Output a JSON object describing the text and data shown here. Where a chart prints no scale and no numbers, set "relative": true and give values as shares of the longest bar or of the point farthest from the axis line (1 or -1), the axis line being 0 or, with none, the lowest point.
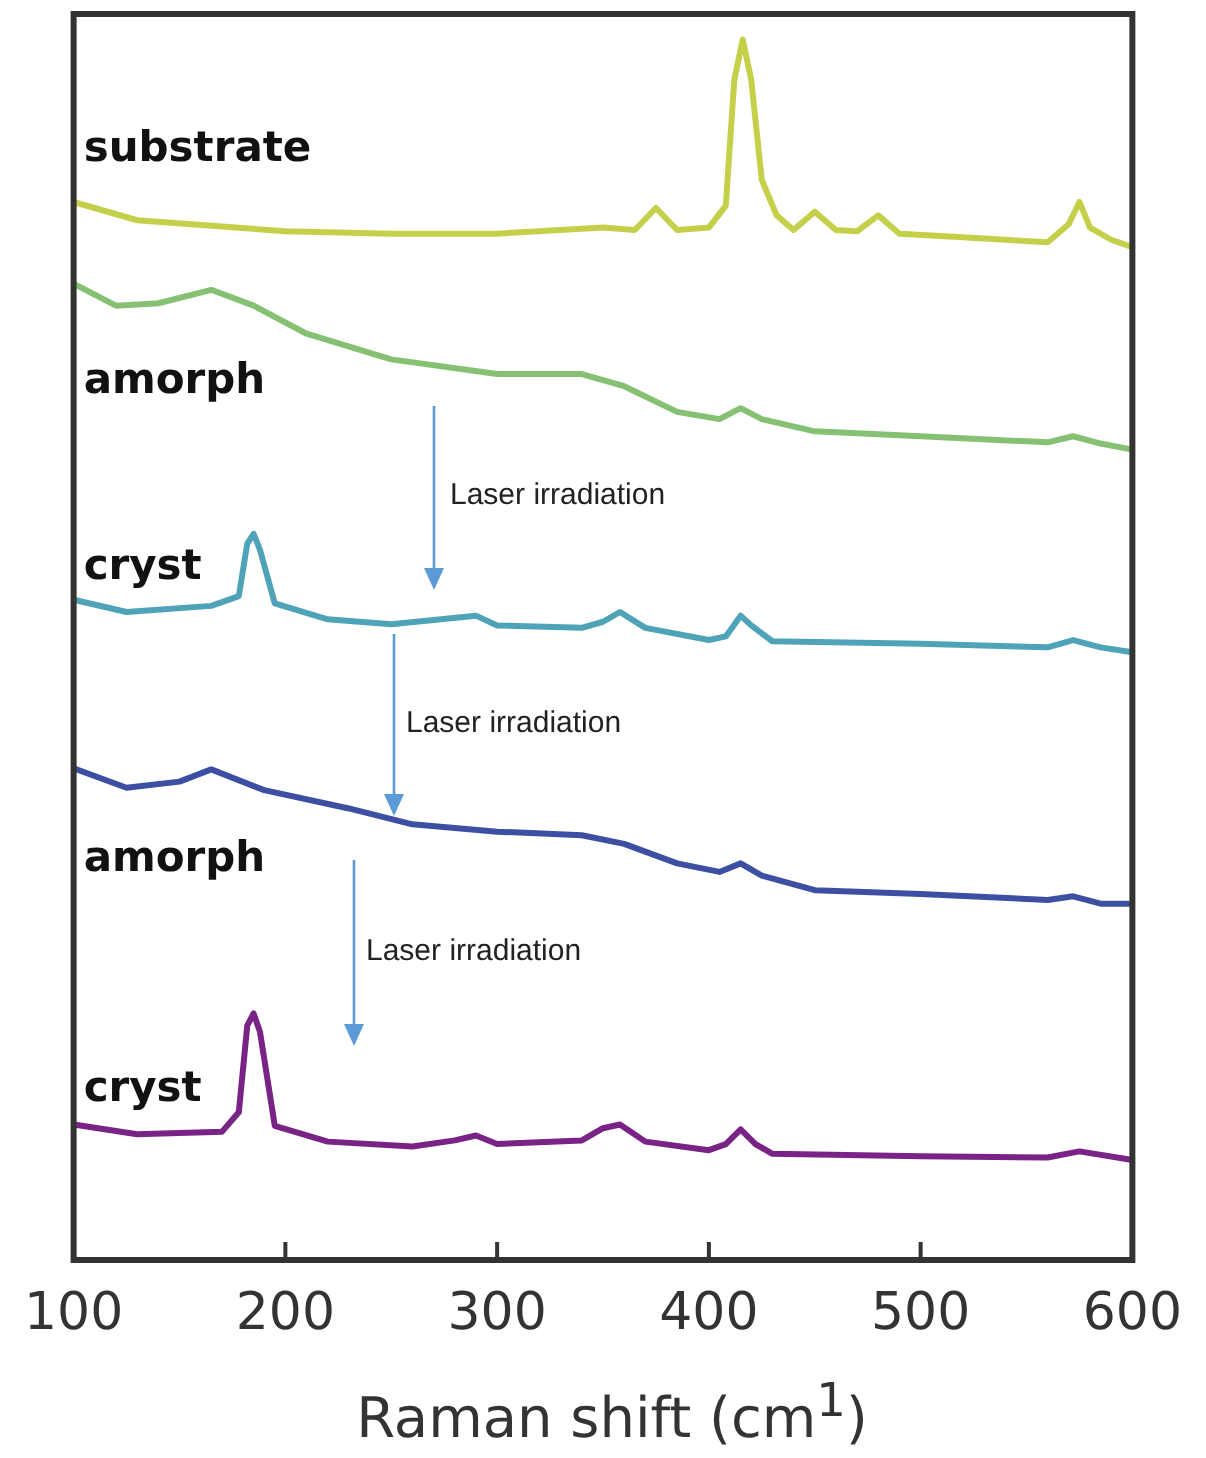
{
  "chart_data": {
    "type": "line",
    "relative": true,
    "xlabel": "Raman shift (cm$^{1}$)",
    "xlim": [
      100,
      600
    ],
    "xticks": [
      100,
      200,
      300,
      400,
      500,
      600
    ],
    "series": [
      {
        "name": "substrate",
        "color": "#c5d04a",
        "x": [
          100,
          130,
          200,
          250,
          300,
          350,
          365,
          375,
          385,
          400,
          408,
          412,
          416,
          420,
          425,
          432,
          440,
          450,
          460,
          470,
          480,
          490,
          520,
          560,
          570,
          575,
          580,
          590,
          600
        ],
        "values": [
          0.867,
          0.852,
          0.843,
          0.841,
          0.841,
          0.846,
          0.844,
          0.862,
          0.844,
          0.846,
          0.864,
          0.967,
          1,
          0.967,
          0.885,
          0.856,
          0.844,
          0.859,
          0.844,
          0.843,
          0.856,
          0.841,
          0.838,
          0.834,
          0.849,
          0.867,
          0.846,
          0.836,
          0.83
        ]
      },
      {
        "name": "amorph",
        "color": "#86c173",
        "x": [
          100,
          120,
          140,
          165,
          185,
          210,
          250,
          300,
          340,
          360,
          385,
          405,
          415,
          425,
          450,
          500,
          560,
          572,
          585,
          600
        ],
        "values": [
          0.8,
          0.782,
          0.784,
          0.795,
          0.782,
          0.759,
          0.738,
          0.726,
          0.726,
          0.716,
          0.695,
          0.689,
          0.698,
          0.689,
          0.679,
          0.675,
          0.67,
          0.675,
          0.669,
          0.664
        ]
      },
      {
        "name": "cryst",
        "color": "#4fa3b8",
        "x": [
          100,
          125,
          165,
          178,
          182,
          185,
          188,
          195,
          220,
          250,
          290,
          300,
          340,
          350,
          358,
          370,
          400,
          408,
          415,
          420,
          430,
          500,
          560,
          572,
          585,
          600
        ],
        "values": [
          0.541,
          0.531,
          0.536,
          0.544,
          0.587,
          0.595,
          0.582,
          0.538,
          0.525,
          0.521,
          0.528,
          0.52,
          0.518,
          0.523,
          0.531,
          0.518,
          0.508,
          0.511,
          0.528,
          0.52,
          0.507,
          0.505,
          0.502,
          0.508,
          0.502,
          0.498
        ]
      },
      {
        "name": "amorph",
        "color": "#3d4fa3",
        "x": [
          100,
          125,
          150,
          165,
          190,
          230,
          260,
          300,
          340,
          360,
          385,
          405,
          415,
          425,
          450,
          500,
          560,
          572,
          585,
          600
        ],
        "values": [
          0.403,
          0.387,
          0.392,
          0.402,
          0.385,
          0.37,
          0.357,
          0.351,
          0.348,
          0.341,
          0.325,
          0.318,
          0.325,
          0.315,
          0.303,
          0.3,
          0.295,
          0.298,
          0.292,
          0.292
        ]
      },
      {
        "name": "cryst",
        "color": "#7a2386",
        "x": [
          100,
          130,
          170,
          178,
          182,
          185,
          188,
          195,
          220,
          260,
          280,
          290,
          300,
          340,
          350,
          358,
          370,
          400,
          408,
          415,
          422,
          430,
          500,
          560,
          575,
          600
        ],
        "values": [
          0.111,
          0.103,
          0.105,
          0.121,
          0.192,
          0.202,
          0.187,
          0.11,
          0.097,
          0.093,
          0.098,
          0.102,
          0.095,
          0.098,
          0.108,
          0.111,
          0.097,
          0.09,
          0.095,
          0.107,
          0.095,
          0.087,
          0.085,
          0.084,
          0.089,
          0.082
        ]
      }
    ],
    "annotations": [
      "Laser irradiation",
      "Laser irradiation",
      "Laser irradiation"
    ]
  }
}
